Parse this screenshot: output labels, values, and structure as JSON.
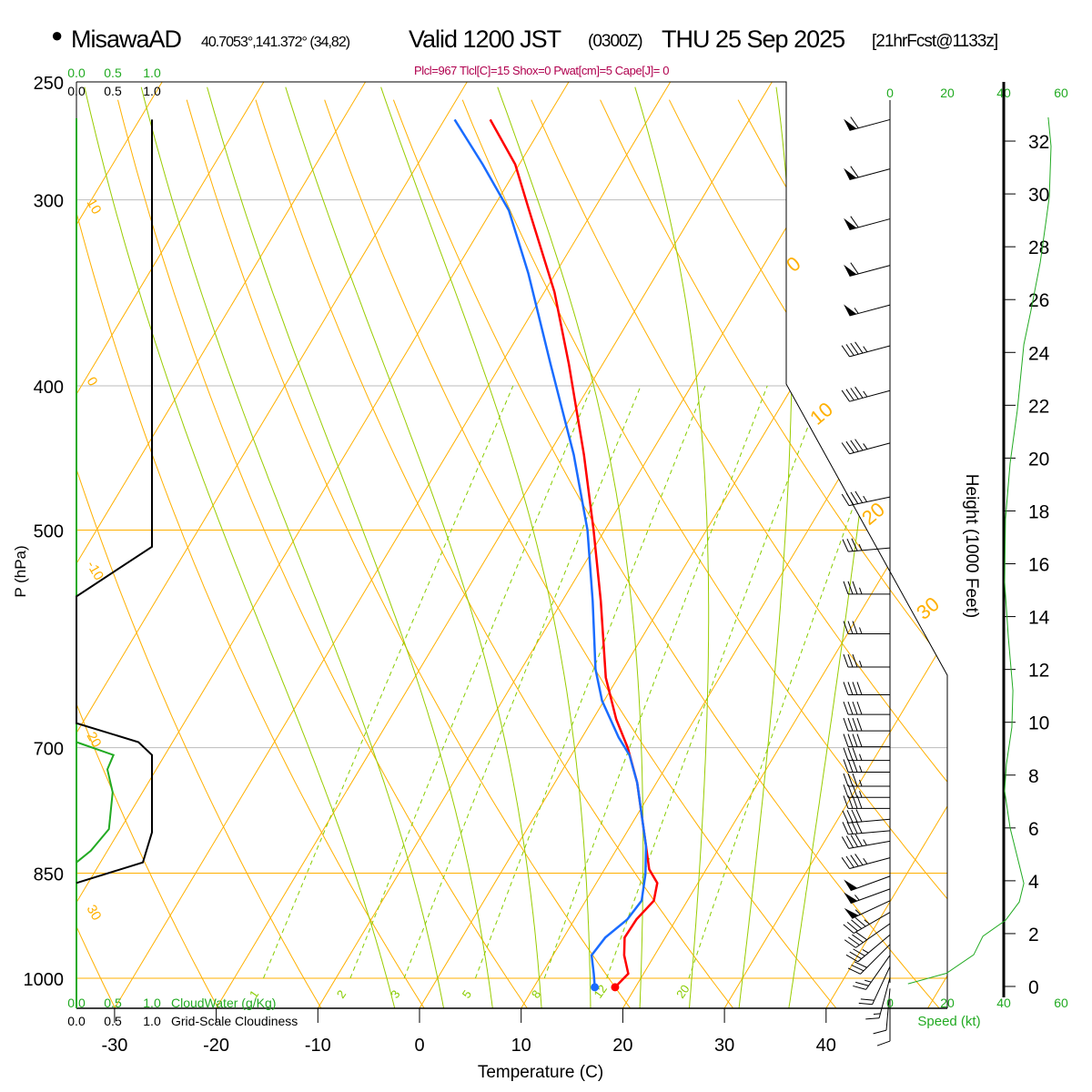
{
  "header": {
    "bullet": "●",
    "station": "MisawaAD",
    "coords": "40.7053°,141.372° (34,82)",
    "valid": "Valid 1200 JST",
    "utc": "(0300Z)",
    "date": "THU 25 Sep 2025",
    "forecast": "[21hrFcst@1133z]"
  },
  "params": "Plcl=967 Tlcl[C]=15 Shox=0 Pwat[cm]=5 Cape[J]= 0",
  "colors": {
    "temperature": "#ff0000",
    "dewpoint": "#1a6cff",
    "isotherm": "#ffb000",
    "moist": "#99cc00",
    "mixing": "#88cc00",
    "green": "#22aa22",
    "params": "#b0004e"
  },
  "chart_data": {
    "type": "line",
    "title": "MisawaAD Skew-T Valid 1200 JST THU 25 Sep 2025",
    "xlabel": "Temperature (C)",
    "ylabel": "P (hPa)",
    "x_ticks": [
      -30,
      -20,
      -10,
      0,
      10,
      20,
      30,
      40
    ],
    "x_tick_labels": [
      "-30",
      "-20",
      "-10",
      "0",
      "10",
      "20",
      "30",
      "40"
    ],
    "pressure_ticks": [
      250,
      300,
      400,
      500,
      700,
      850,
      1000
    ],
    "pressure_tick_labels": [
      "250",
      "300",
      "400",
      "500",
      "700",
      "850",
      "1000"
    ],
    "ylim": [
      1047,
      250
    ],
    "skew": "45-like skew-T log-p",
    "series": [
      {
        "name": "Temperature",
        "color": "#ff0000",
        "p": [
          265,
          284,
          305,
          346,
          387,
          445,
          500,
          558,
          628,
          670,
          700,
          739,
          815,
          845,
          863,
          887,
          913,
          939,
          965,
          993,
          1014
        ],
        "t": [
          -45.5,
          -40.4,
          -36.3,
          -29.0,
          -23.3,
          -16.5,
          -11.1,
          -6.2,
          -1.2,
          2.3,
          5.1,
          8.1,
          12.7,
          14.4,
          16.0,
          16.7,
          16.1,
          16.0,
          17.0,
          18.5,
          18.0
        ]
      },
      {
        "name": "Dewpoint",
        "color": "#1a6cff",
        "p": [
          265,
          284,
          305,
          336,
          387,
          445,
          500,
          558,
          620,
          651,
          689,
          708,
          739,
          815,
          851,
          887,
          913,
          939,
          965,
          993,
          1014
        ],
        "t": [
          -49.0,
          -43.6,
          -38.3,
          -32.7,
          -25.1,
          -17.5,
          -11.7,
          -7.0,
          -2.7,
          -0.2,
          3.6,
          5.7,
          8.1,
          12.7,
          14.3,
          15.5,
          15.2,
          14.1,
          13.8,
          15.1,
          16.0
        ]
      }
    ],
    "mixing_ratio_labels": [
      "1",
      "2",
      "3",
      "5",
      "8",
      "12",
      "20"
    ],
    "mixing_ratio_values": [
      1,
      2,
      3,
      5,
      8,
      12,
      20
    ],
    "left_isopleth_labels": [
      "10",
      "0",
      "-10",
      "20",
      "30"
    ],
    "right_isopleth_labels": [
      "0",
      "10",
      "20",
      "30"
    ],
    "cloud_panel": {
      "top_green_ticks": [
        "0.0",
        "0.5",
        "1.0"
      ],
      "top_black_ticks": [
        "0.0",
        "0.5",
        "1.0"
      ],
      "bottom_green_ticks": [
        "0.0",
        "0.5",
        "1.0"
      ],
      "bottom_black_ticks": [
        "0.0",
        "0.5",
        "1.0"
      ],
      "cloud_water_label": "CloudWater (g/Kg)",
      "cloudiness_label": "Grid-Scale Cloudiness",
      "cloudiness": {
        "p": [
          265,
          513,
          554,
          674,
          694,
          708,
          798,
          836,
          863
        ],
        "value": [
          1.0,
          1.0,
          0.0,
          0.0,
          0.82,
          1.0,
          1.0,
          0.88,
          0.0
        ]
      },
      "cloud_water": {
        "p": [
          694,
          708,
          724,
          750,
          794,
          821,
          836
        ],
        "value": [
          0.0,
          0.49,
          0.41,
          0.48,
          0.43,
          0.19,
          0.0
        ]
      }
    },
    "winds": {
      "p": [
        265,
        286,
        309,
        332,
        353,
        376,
        403,
        437,
        475,
        514,
        552,
        587,
        618,
        645,
        665,
        682,
        699,
        714,
        727,
        743,
        756,
        769,
        782,
        796,
        809,
        830,
        854,
        871,
        887,
        903,
        919,
        935,
        949,
        965,
        982,
        999,
        1016,
        1033
      ],
      "dir": [
        255,
        255,
        255,
        255,
        255,
        255,
        255,
        255,
        258,
        265,
        270,
        270,
        270,
        270,
        270,
        270,
        270,
        270,
        270,
        270,
        270,
        270,
        265,
        265,
        260,
        255,
        250,
        250,
        245,
        240,
        235,
        230,
        225,
        215,
        205,
        195,
        185,
        180
      ],
      "kt": [
        60,
        60,
        60,
        60,
        55,
        45,
        45,
        45,
        45,
        35,
        35,
        35,
        35,
        40,
        40,
        40,
        40,
        35,
        35,
        35,
        35,
        40,
        40,
        40,
        45,
        45,
        50,
        55,
        55,
        45,
        40,
        35,
        30,
        25,
        20,
        15,
        10,
        10
      ]
    },
    "speed_axis": {
      "ticks": [
        "0",
        "20",
        "40",
        "60"
      ],
      "label": "Speed (kt)"
    },
    "height_axis": {
      "label": "Height (1000 Feet)",
      "ticks": [
        "0",
        "2",
        "4",
        "6",
        "8",
        "10",
        "12",
        "14",
        "16",
        "18",
        "20",
        "22",
        "24",
        "26",
        "28",
        "30",
        "32"
      ]
    },
    "speed_profile": {
      "height_kft": [
        32.9,
        31.8,
        29.9,
        29.1,
        27.4,
        25.6,
        24.3,
        21.8,
        19.8,
        17.7,
        15.3,
        13.2,
        11.2,
        9.8,
        8.4,
        7.4,
        6.0,
        4.6,
        3.9,
        3.2,
        2.5,
        1.9,
        1.2,
        0.5,
        0.1
      ],
      "speed_kt": [
        55.2,
        56.2,
        55.6,
        54.6,
        52.4,
        49.2,
        46.7,
        44.4,
        41.9,
        40.3,
        40.0,
        41.3,
        42.9,
        42.5,
        40.6,
        40.0,
        41.9,
        45.1,
        46.7,
        45.1,
        40.3,
        32.4,
        29.2,
        19.7,
        6.3
      ]
    }
  }
}
